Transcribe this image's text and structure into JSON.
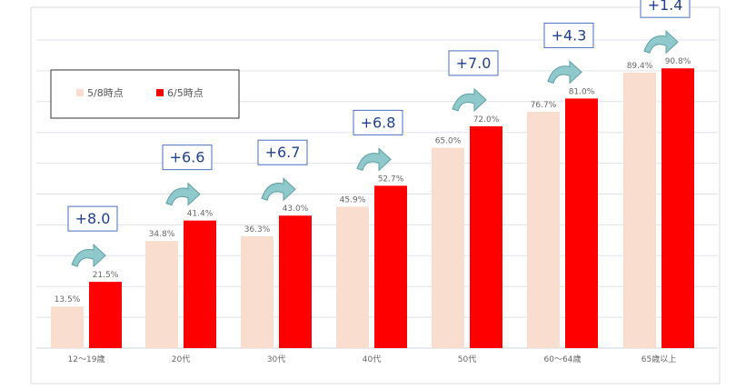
{
  "chart_data": {
    "type": "bar",
    "categories": [
      "12～19歳",
      "20代",
      "30代",
      "40代",
      "50代",
      "60～64歳",
      "65歳以上"
    ],
    "series": [
      {
        "name": "5/8時点",
        "values": [
          13.5,
          34.8,
          36.3,
          45.9,
          65.0,
          76.7,
          89.4
        ],
        "labels": [
          "13.5%",
          "34.8%",
          "36.3%",
          "45.9%",
          "65.0%",
          "76.7%",
          "89.4%"
        ],
        "color": "#f9ded0"
      },
      {
        "name": "6/5時点",
        "values": [
          21.5,
          41.4,
          43.0,
          52.7,
          72.0,
          81.0,
          90.8
        ],
        "labels": [
          "21.5%",
          "41.4%",
          "43.0%",
          "52.7%",
          "72.0%",
          "81.0%",
          "90.8%"
        ],
        "color": "#ff0000"
      }
    ],
    "differences": [
      "+8.0",
      "+6.6",
      "+6.7",
      "+6.8",
      "+7.0",
      "+4.3",
      "+1.4"
    ],
    "ylim": [
      0,
      100
    ],
    "grid": true,
    "legend": "top-left",
    "colors": {
      "axis_label": "#666666",
      "data_label": "#666666",
      "grid": "#dfe3e8",
      "callout_text": "#1f3f8f",
      "callout_border": "#4a6fc1",
      "arrow_fill": "#8fc9cc",
      "arrow_stroke": "#5c9fa3"
    }
  }
}
